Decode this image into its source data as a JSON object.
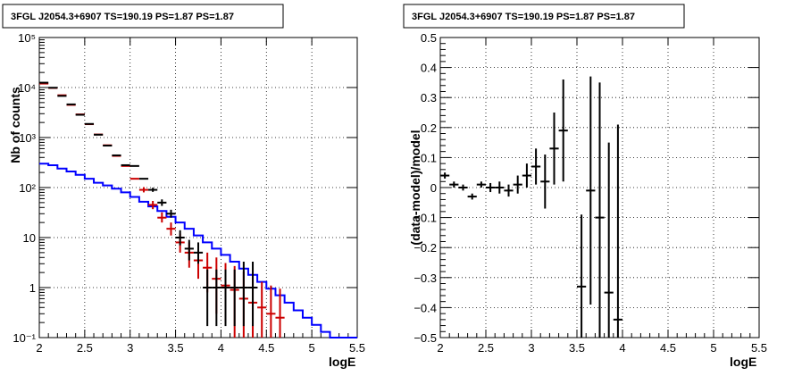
{
  "chart_data": [
    {
      "type": "line",
      "title": "3FGL J2054.3+6907 TS=190.19 PS=1.87 PS=1.87",
      "xlabel": "logE",
      "ylabel": "Nb of counts",
      "xlim": [
        2,
        5.5
      ],
      "ylim": [
        0.1,
        100000
      ],
      "yscale": "log",
      "grid": true,
      "xticks": [
        "2",
        "2.5",
        "3",
        "3.5",
        "4",
        "4.5",
        "5",
        "5.5"
      ],
      "yticks": [
        "10⁻¹",
        "1",
        "10",
        "10²",
        "10³",
        "10⁴",
        "10⁵"
      ],
      "bin_edges": [
        2.0,
        2.1,
        2.2,
        2.3,
        2.4,
        2.5,
        2.6,
        2.7,
        2.8,
        2.9,
        3.0,
        3.1,
        3.2,
        3.3,
        3.4,
        3.5,
        3.6,
        3.7,
        3.8,
        3.9,
        4.0,
        4.1,
        4.2,
        4.3,
        4.4,
        4.5,
        4.6,
        4.7,
        4.8,
        4.9,
        5.0,
        5.1,
        5.2,
        5.3,
        5.4,
        5.5
      ],
      "series": [
        {
          "color": "#0000ff",
          "style": "step",
          "values": [
            300,
            280,
            240,
            210,
            180,
            150,
            125,
            110,
            95,
            80,
            65,
            52,
            42,
            34,
            26,
            20,
            15,
            11,
            8,
            6,
            4.5,
            3.3,
            2.4,
            1.8,
            1.3,
            0.95,
            0.7,
            0.5,
            0.35,
            0.25,
            0.18,
            0.13,
            0.1,
            0.1,
            0.1
          ]
        },
        {
          "color": "#cc0000",
          "style": "points",
          "x": [
            2.05,
            2.15,
            2.25,
            2.35,
            2.45,
            2.55,
            2.65,
            2.75,
            2.85,
            2.95,
            3.05,
            3.15,
            3.25,
            3.35,
            3.45,
            3.55,
            3.65,
            3.75,
            3.85,
            3.95,
            4.05,
            4.15,
            4.25,
            4.35,
            4.45,
            4.55,
            4.65
          ],
          "y": [
            12000,
            9800,
            7000,
            4500,
            2900,
            1850,
            1150,
            700,
            430,
            270,
            150,
            90,
            45,
            25,
            15,
            8,
            5,
            3.5,
            2.5,
            1.5,
            1.1,
            0.9,
            0.6,
            0.5,
            0.4,
            0.3,
            0.25
          ],
          "err_low": [
            0,
            0,
            0,
            0,
            0,
            0,
            0,
            0,
            0,
            0,
            0,
            10,
            8,
            5,
            4,
            3,
            2.5,
            2,
            1.7,
            1.2,
            0.9,
            0.8,
            0.52,
            0.45,
            0.36,
            0.27,
            0.23
          ],
          "err_high": [
            0,
            0,
            0,
            0,
            0,
            0,
            0,
            0,
            0,
            0,
            0,
            12,
            9,
            7,
            5,
            4,
            3,
            3,
            2.5,
            2.5,
            2,
            1.8,
            1.5,
            1.2,
            0.9,
            0.8,
            0.7
          ]
        },
        {
          "color": "#000000",
          "style": "points",
          "x": [
            2.05,
            2.15,
            2.25,
            2.35,
            2.45,
            2.55,
            2.65,
            2.75,
            2.85,
            2.95,
            3.05,
            3.15,
            3.25,
            3.35,
            3.45,
            3.55,
            3.65,
            3.75,
            3.85,
            3.95,
            4.05,
            4.15,
            4.25,
            4.35
          ],
          "y": [
            12500,
            9900,
            6800,
            4600,
            2850,
            1870,
            1140,
            690,
            440,
            280,
            270,
            150,
            90,
            50,
            30,
            10,
            6,
            5,
            1,
            1,
            1,
            1,
            1,
            1
          ],
          "err_low": [
            0,
            0,
            0,
            0,
            0,
            0,
            0,
            0,
            0,
            0,
            0,
            0,
            8,
            7,
            5,
            3,
            2.5,
            2,
            0.83,
            0.83,
            0.83,
            0.83,
            0.83,
            0.83
          ],
          "err_high": [
            0,
            0,
            0,
            0,
            0,
            0,
            0,
            0,
            0,
            0,
            0,
            0,
            9,
            8,
            6,
            4,
            3,
            3,
            1.3,
            1.3,
            1.3,
            1.3,
            2.3,
            2.3
          ]
        }
      ]
    },
    {
      "type": "scatter",
      "title": "3FGL J2054.3+6907 TS=190.19 PS=1.87 PS=1.87",
      "xlabel": "logE",
      "ylabel": "(data-model)/model",
      "xlim": [
        2,
        5.5
      ],
      "ylim": [
        -0.5,
        0.5
      ],
      "grid": true,
      "xticks": [
        "2",
        "2.5",
        "3",
        "3.5",
        "4",
        "4.5",
        "5",
        "5.5"
      ],
      "yticks": [
        "−0.5",
        "−0.4",
        "−0.3",
        "−0.2",
        "−0.1",
        "0",
        "0.1",
        "0.2",
        "0.3",
        "0.4",
        "0.5"
      ],
      "series": [
        {
          "color": "#000000",
          "x": [
            2.05,
            2.15,
            2.25,
            2.35,
            2.45,
            2.55,
            2.65,
            2.75,
            2.85,
            2.95,
            3.05,
            3.15,
            3.25,
            3.35,
            3.55,
            3.65,
            3.75,
            3.85,
            3.95
          ],
          "y": [
            0.04,
            0.01,
            0.0,
            -0.03,
            0.01,
            0.0,
            0.0,
            -0.01,
            0.01,
            0.04,
            0.07,
            0.02,
            0.13,
            0.19,
            -0.33,
            -0.01,
            -0.1,
            -0.35,
            -0.44
          ],
          "err": [
            0.01,
            0.01,
            0.01,
            0.01,
            0.01,
            0.015,
            0.02,
            0.02,
            0.03,
            0.04,
            0.06,
            0.09,
            0.12,
            0.17,
            0.24,
            0.38,
            0.45,
            0.5,
            0.65
          ]
        }
      ]
    }
  ]
}
